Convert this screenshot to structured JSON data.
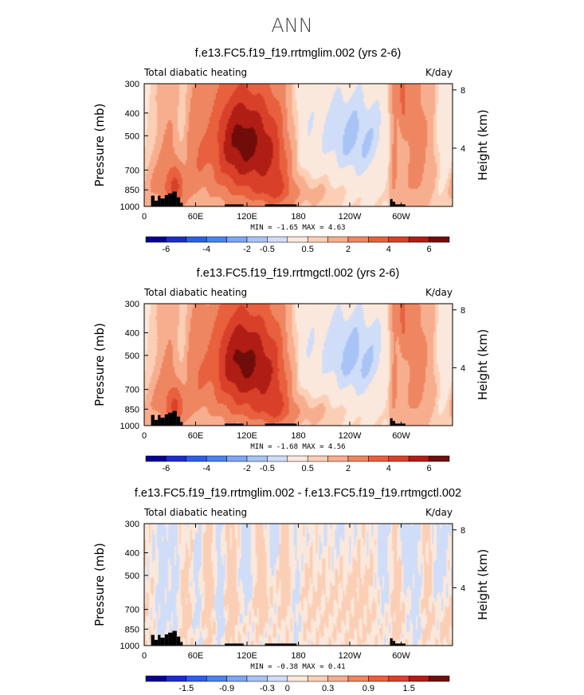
{
  "title": "ANN",
  "panel_left_label": "Total diabatic heating",
  "panel_right_label": "K/day",
  "ylabel_left": "Pressure (mb)",
  "ylabel_right": "Height (km)",
  "chart_data": [
    {
      "type": "heatmap",
      "title": "f.e13.FC5.f19_f19.rrtmglim.002 (yrs 2-6)",
      "stats": "MIN =   -1.65   MAX =    4.63",
      "x_ticks": [
        "0",
        "60E",
        "120E",
        "180",
        "120W",
        "60W"
      ],
      "x_tick_lon": [
        0,
        60,
        120,
        180,
        240,
        300
      ],
      "xlim": [
        0,
        360
      ],
      "y_ticks": [
        "300",
        "400",
        "500",
        "700",
        "850",
        "1000"
      ],
      "y_tick_p": [
        300,
        400,
        500,
        700,
        850,
        1000
      ],
      "ylim": [
        1000,
        300
      ],
      "y_scale": "log",
      "height_ticks": [
        "8",
        "4"
      ],
      "height_tick_km": [
        8,
        4
      ],
      "colorbar_labels": [
        "-6",
        "-4",
        "-2",
        "-0.5",
        "0.5",
        "2",
        "4",
        "6"
      ],
      "colorbar_colors": [
        "#08008f",
        "#1c2ccf",
        "#2f5ee6",
        "#4a82f0",
        "#7ea6f3",
        "#a8c4f6",
        "#cfddf8",
        "#fbe8dc",
        "#fbcfb5",
        "#f7ae8e",
        "#ef8662",
        "#e8603d",
        "#d9402a",
        "#b01d14",
        "#700d0a"
      ],
      "field": {
        "bg": 0.55,
        "features": [
          {
            "lon": 12,
            "p": 820,
            "wlon": 14,
            "wp": 160,
            "v": 1.4
          },
          {
            "lon": 28,
            "p": 600,
            "wlon": 10,
            "wp": 260,
            "v": 1.5
          },
          {
            "lon": 38,
            "p": 850,
            "wlon": 8,
            "wp": 120,
            "v": 2.6
          },
          {
            "lon": 44,
            "p": 470,
            "wlon": 5,
            "wp": 200,
            "v": -0.9
          },
          {
            "lon": 58,
            "p": 550,
            "wlon": 10,
            "wp": 280,
            "v": 1.6
          },
          {
            "lon": 96,
            "p": 520,
            "wlon": 22,
            "wp": 260,
            "v": 2.6
          },
          {
            "lon": 110,
            "p": 480,
            "wlon": 18,
            "wp": 150,
            "v": 1.3
          },
          {
            "lon": 132,
            "p": 520,
            "wlon": 20,
            "wp": 220,
            "v": 2.9
          },
          {
            "lon": 126,
            "p": 760,
            "wlon": 40,
            "wp": 250,
            "v": 1.4
          },
          {
            "lon": 156,
            "p": 620,
            "wlon": 14,
            "wp": 320,
            "v": 1.6
          },
          {
            "lon": 158,
            "p": 880,
            "wlon": 30,
            "wp": 90,
            "v": 1.2
          },
          {
            "lon": 186,
            "p": 650,
            "wlon": 10,
            "wp": 320,
            "v": -0.6
          },
          {
            "lon": 240,
            "p": 470,
            "wlon": 42,
            "wp": 170,
            "v": -1.4
          },
          {
            "lon": 252,
            "p": 720,
            "wlon": 26,
            "wp": 200,
            "v": -0.6
          },
          {
            "lon": 222,
            "p": 880,
            "wlon": 30,
            "wp": 100,
            "v": 0.3
          },
          {
            "lon": 292,
            "p": 560,
            "wlon": 4,
            "wp": 380,
            "v": 2.2
          },
          {
            "lon": 302,
            "p": 320,
            "wlon": 4,
            "wp": 120,
            "v": 2.5
          },
          {
            "lon": 318,
            "p": 560,
            "wlon": 12,
            "wp": 330,
            "v": 2.4
          },
          {
            "lon": 338,
            "p": 560,
            "wlon": 6,
            "wp": 330,
            "v": 0.3
          },
          {
            "lon": 352,
            "p": 560,
            "wlon": 8,
            "wp": 320,
            "v": -0.8
          }
        ]
      }
    },
    {
      "type": "heatmap",
      "title": "f.e13.FC5.f19_f19.rrtmgctl.002 (yrs 2-6)",
      "stats": "MIN =   -1.68   MAX =    4.56",
      "x_ticks": [
        "0",
        "60E",
        "120E",
        "180",
        "120W",
        "60W"
      ],
      "x_tick_lon": [
        0,
        60,
        120,
        180,
        240,
        300
      ],
      "xlim": [
        0,
        360
      ],
      "y_ticks": [
        "300",
        "400",
        "500",
        "700",
        "850",
        "1000"
      ],
      "y_tick_p": [
        300,
        400,
        500,
        700,
        850,
        1000
      ],
      "ylim": [
        1000,
        300
      ],
      "y_scale": "log",
      "height_ticks": [
        "8",
        "4"
      ],
      "height_tick_km": [
        8,
        4
      ],
      "colorbar_labels": [
        "-6",
        "-4",
        "-2",
        "-0.5",
        "0.5",
        "2",
        "4",
        "6"
      ],
      "colorbar_colors": [
        "#08008f",
        "#1c2ccf",
        "#2f5ee6",
        "#4a82f0",
        "#7ea6f3",
        "#a8c4f6",
        "#cfddf8",
        "#fbe8dc",
        "#fbcfb5",
        "#f7ae8e",
        "#ef8662",
        "#e8603d",
        "#d9402a",
        "#b01d14",
        "#700d0a"
      ],
      "field": {
        "bg": 0.55,
        "features": [
          {
            "lon": 12,
            "p": 820,
            "wlon": 14,
            "wp": 160,
            "v": 1.3
          },
          {
            "lon": 28,
            "p": 600,
            "wlon": 10,
            "wp": 260,
            "v": 1.5
          },
          {
            "lon": 38,
            "p": 850,
            "wlon": 8,
            "wp": 120,
            "v": 2.5
          },
          {
            "lon": 44,
            "p": 470,
            "wlon": 5,
            "wp": 200,
            "v": -0.9
          },
          {
            "lon": 58,
            "p": 550,
            "wlon": 10,
            "wp": 280,
            "v": 1.6
          },
          {
            "lon": 96,
            "p": 520,
            "wlon": 22,
            "wp": 260,
            "v": 2.5
          },
          {
            "lon": 110,
            "p": 480,
            "wlon": 18,
            "wp": 150,
            "v": 1.3
          },
          {
            "lon": 132,
            "p": 520,
            "wlon": 20,
            "wp": 220,
            "v": 2.8
          },
          {
            "lon": 126,
            "p": 760,
            "wlon": 40,
            "wp": 250,
            "v": 1.4
          },
          {
            "lon": 156,
            "p": 620,
            "wlon": 14,
            "wp": 320,
            "v": 1.6
          },
          {
            "lon": 158,
            "p": 880,
            "wlon": 30,
            "wp": 90,
            "v": 1.2
          },
          {
            "lon": 186,
            "p": 650,
            "wlon": 10,
            "wp": 320,
            "v": -0.6
          },
          {
            "lon": 240,
            "p": 470,
            "wlon": 42,
            "wp": 170,
            "v": -1.45
          },
          {
            "lon": 252,
            "p": 720,
            "wlon": 26,
            "wp": 200,
            "v": -0.6
          },
          {
            "lon": 222,
            "p": 880,
            "wlon": 30,
            "wp": 100,
            "v": 0.3
          },
          {
            "lon": 292,
            "p": 560,
            "wlon": 4,
            "wp": 380,
            "v": 2.2
          },
          {
            "lon": 302,
            "p": 320,
            "wlon": 4,
            "wp": 120,
            "v": 2.5
          },
          {
            "lon": 318,
            "p": 560,
            "wlon": 12,
            "wp": 330,
            "v": 2.4
          },
          {
            "lon": 338,
            "p": 560,
            "wlon": 6,
            "wp": 330,
            "v": 0.3
          },
          {
            "lon": 352,
            "p": 560,
            "wlon": 8,
            "wp": 320,
            "v": -0.8
          }
        ]
      }
    },
    {
      "type": "heatmap",
      "title": "f.e13.FC5.f19_f19.rrtmglim.002 - f.e13.FC5.f19_f19.rrtmgctl.002",
      "stats": "MIN =   -0.38   MAX =    0.41",
      "x_ticks": [
        "0",
        "60E",
        "120E",
        "180",
        "120W",
        "60W"
      ],
      "x_tick_lon": [
        0,
        60,
        120,
        180,
        240,
        300
      ],
      "xlim": [
        0,
        360
      ],
      "y_ticks": [
        "300",
        "400",
        "500",
        "700",
        "850",
        "1000"
      ],
      "y_tick_p": [
        300,
        400,
        500,
        700,
        850,
        1000
      ],
      "ylim": [
        1000,
        300
      ],
      "y_scale": "log",
      "height_ticks": [
        "8",
        "4"
      ],
      "height_tick_km": [
        8,
        4
      ],
      "colorbar_labels": [
        "-1.5",
        "-0.9",
        "-0.3",
        "0",
        "0.3",
        "0.9",
        "1.5"
      ],
      "colorbar_colors": [
        "#08008f",
        "#1c2ccf",
        "#2f5ee6",
        "#4a82f0",
        "#7ea6f3",
        "#a8c4f6",
        "#cfddf8",
        "#fbe8dc",
        "#fbcfb5",
        "#f7ae8e",
        "#ef8662",
        "#e8603d",
        "#d9402a",
        "#b01d14",
        "#700d0a"
      ],
      "field": {
        "bg": 0.0,
        "features": [
          {
            "lon": 20,
            "p": 560,
            "wlon": 4,
            "wp": 330,
            "v": -0.12
          },
          {
            "lon": 34,
            "p": 560,
            "wlon": 4,
            "wp": 330,
            "v": -0.1
          },
          {
            "lon": 48,
            "p": 700,
            "wlon": 5,
            "wp": 250,
            "v": 0.1
          },
          {
            "lon": 62,
            "p": 560,
            "wlon": 4,
            "wp": 330,
            "v": -0.1
          },
          {
            "lon": 74,
            "p": 600,
            "wlon": 5,
            "wp": 300,
            "v": 0.12
          },
          {
            "lon": 88,
            "p": 600,
            "wlon": 4,
            "wp": 300,
            "v": -0.12
          },
          {
            "lon": 102,
            "p": 620,
            "wlon": 5,
            "wp": 300,
            "v": 0.14
          },
          {
            "lon": 118,
            "p": 420,
            "wlon": 5,
            "wp": 160,
            "v": -0.14
          },
          {
            "lon": 136,
            "p": 540,
            "wlon": 5,
            "wp": 220,
            "v": 0.13
          },
          {
            "lon": 150,
            "p": 360,
            "wlon": 5,
            "wp": 80,
            "v": -0.14
          },
          {
            "lon": 164,
            "p": 450,
            "wlon": 4,
            "wp": 200,
            "v": 0.12
          },
          {
            "lon": 178,
            "p": 640,
            "wlon": 4,
            "wp": 300,
            "v": -0.1
          },
          {
            "lon": 200,
            "p": 600,
            "wlon": 30,
            "wp": 280,
            "v": 0.05
          },
          {
            "lon": 230,
            "p": 330,
            "wlon": 25,
            "wp": 90,
            "v": -0.07
          },
          {
            "lon": 252,
            "p": 600,
            "wlon": 14,
            "wp": 300,
            "v": 0.06
          },
          {
            "lon": 280,
            "p": 420,
            "wlon": 5,
            "wp": 160,
            "v": -0.12
          },
          {
            "lon": 296,
            "p": 640,
            "wlon": 4,
            "wp": 300,
            "v": 0.12
          },
          {
            "lon": 306,
            "p": 380,
            "wlon": 4,
            "wp": 100,
            "v": -0.2
          },
          {
            "lon": 318,
            "p": 560,
            "wlon": 5,
            "wp": 330,
            "v": -0.1
          },
          {
            "lon": 332,
            "p": 560,
            "wlon": 5,
            "wp": 330,
            "v": 0.1
          },
          {
            "lon": 346,
            "p": 450,
            "wlon": 6,
            "wp": 160,
            "v": -0.14
          },
          {
            "lon": 354,
            "p": 800,
            "wlon": 6,
            "wp": 160,
            "v": 0.1
          }
        ]
      }
    }
  ]
}
